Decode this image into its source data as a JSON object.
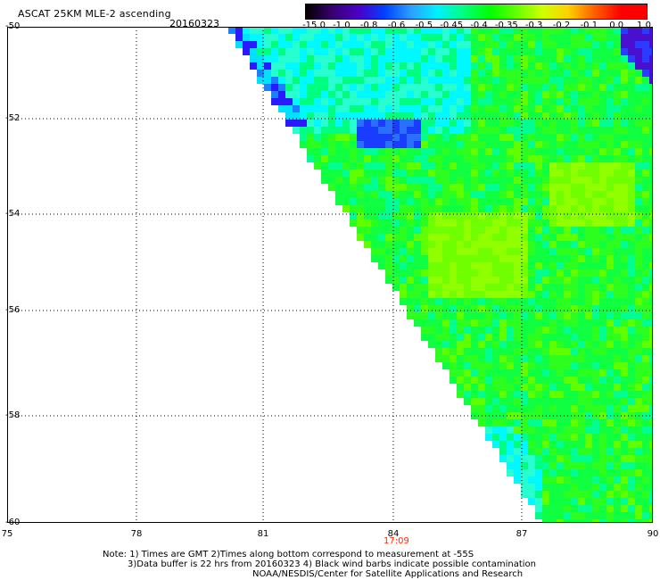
{
  "title": "ASCAT 25KM MLE-2 ascending",
  "date": "20160323",
  "colorbar": {
    "labels": [
      "-15.0",
      "-1.0",
      "-0.8",
      "-0.6",
      "-0.5",
      "-0.45",
      "-0.4",
      "-0.35",
      "-0.3",
      "-0.2",
      "-0.1",
      "0.0",
      "1.0"
    ],
    "colors": [
      "#000000",
      "#3a0070",
      "#4a00c8",
      "#0040ff",
      "#2aa0ff",
      "#00f0ff",
      "#00ff80",
      "#00ff00",
      "#60ff00",
      "#d0ff00",
      "#ffd000",
      "#ff6000",
      "#ff0000"
    ]
  },
  "map": {
    "lat_labels": [
      "-50",
      "-52",
      "-54",
      "-56",
      "-58",
      "-60"
    ],
    "lon_labels": [
      "75",
      "78",
      "81",
      "84",
      "87",
      "90"
    ],
    "pass_time": "17:09"
  },
  "notes": {
    "line1": "Note: 1) Times are GMT 2)Times along bottom correspond to measurement at -55S",
    "line2": "3)Data buffer is 22 hrs from 20160323 4) Black wind barbs indicate possible contamination",
    "line3": "NOAA/NESDIS/Center for Satellite Applications and Research"
  }
}
